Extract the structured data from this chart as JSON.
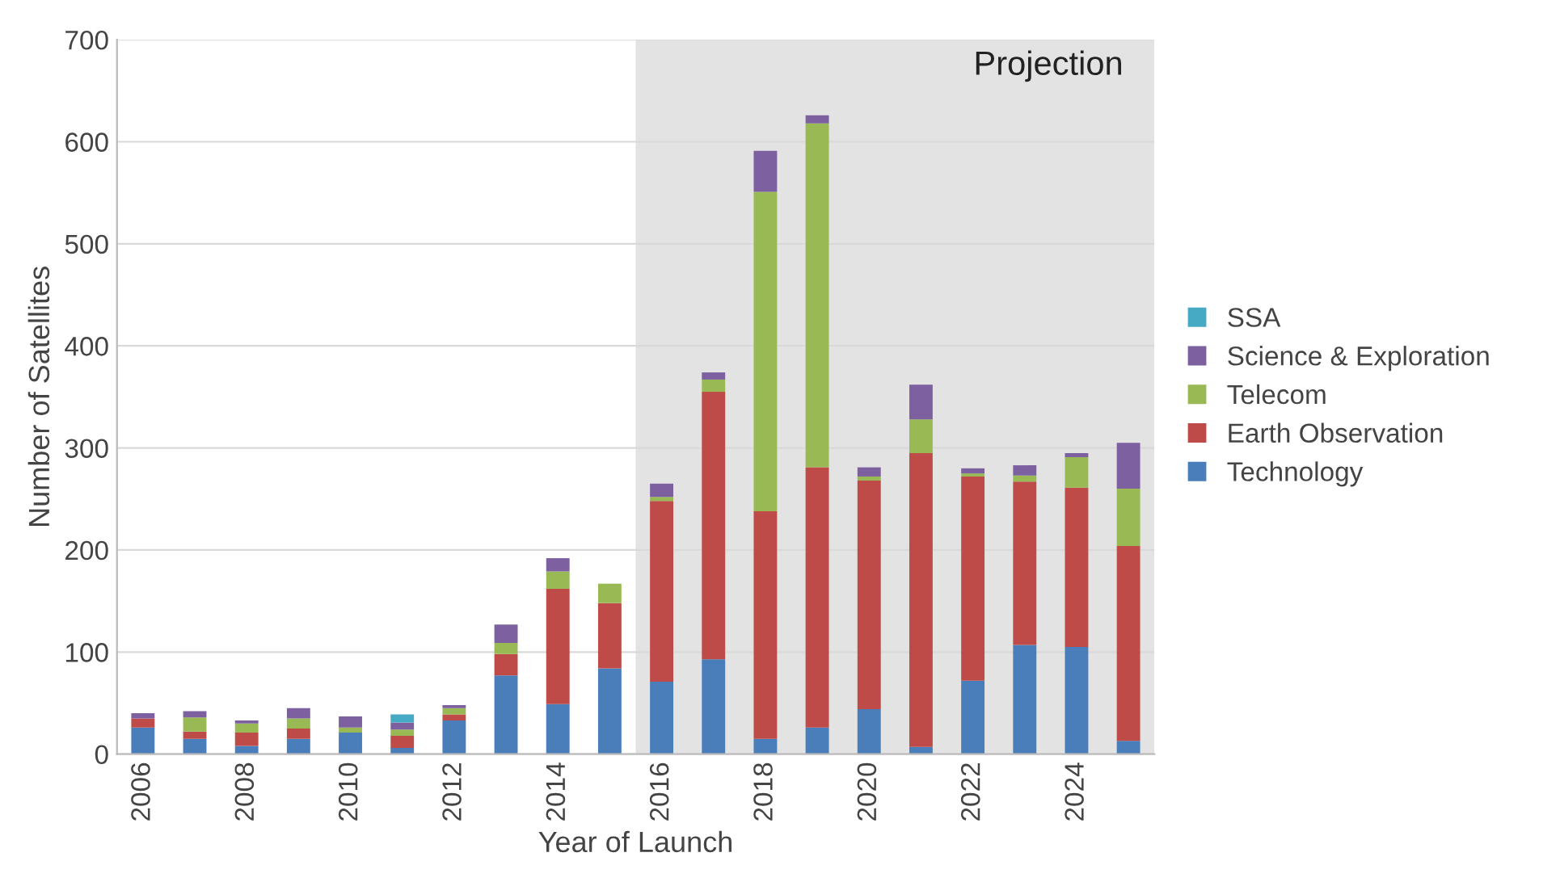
{
  "chart_data": {
    "type": "bar",
    "stacked": true,
    "xlabel": "Year of Launch",
    "ylabel": "Number of Satellites",
    "x": [
      2006,
      2007,
      2008,
      2009,
      2010,
      2011,
      2012,
      2013,
      2014,
      2015,
      2016,
      2017,
      2018,
      2019,
      2020,
      2021,
      2022,
      2023,
      2024,
      2025
    ],
    "xlim": [
      2005.5,
      2025.5
    ],
    "xticks": [
      2006,
      2008,
      2010,
      2012,
      2014,
      2016,
      2018,
      2020,
      2022,
      2024
    ],
    "ylim": [
      0,
      700
    ],
    "yticks": [
      0,
      100,
      200,
      300,
      400,
      500,
      600,
      700
    ],
    "grid": "y",
    "legend": "right",
    "series": [
      {
        "name": "Technology",
        "color": "#4a7ebb",
        "values": [
          26,
          15,
          8,
          15,
          21,
          6,
          33,
          77,
          49,
          84,
          71,
          93,
          15,
          26,
          44,
          7,
          72,
          107,
          105,
          13
        ]
      },
      {
        "name": "Earth Observation",
        "color": "#be4b48",
        "values": [
          9,
          7,
          13,
          10,
          0,
          12,
          6,
          21,
          113,
          64,
          177,
          262,
          223,
          255,
          224,
          288,
          200,
          160,
          156,
          191
        ]
      },
      {
        "name": "Telecom",
        "color": "#98b954",
        "values": [
          0,
          14,
          9,
          10,
          5,
          6,
          6,
          11,
          17,
          19,
          4,
          12,
          313,
          337,
          4,
          33,
          3,
          6,
          30,
          56
        ]
      },
      {
        "name": "Science & Exploration",
        "color": "#7d60a0",
        "values": [
          5,
          6,
          3,
          10,
          11,
          7,
          3,
          18,
          13,
          0,
          13,
          7,
          40,
          8,
          9,
          34,
          5,
          10,
          4,
          45
        ]
      },
      {
        "name": "SSA",
        "color": "#46aac5",
        "values": [
          0,
          0,
          0,
          0,
          0,
          8,
          0,
          0,
          0,
          0,
          0,
          0,
          0,
          0,
          0,
          0,
          0,
          0,
          0,
          0
        ]
      }
    ],
    "bands": [
      {
        "axis": "x",
        "from": 2015.5,
        "to": 2025.5,
        "label": "Projection",
        "color": "#e3e3e3"
      }
    ]
  }
}
